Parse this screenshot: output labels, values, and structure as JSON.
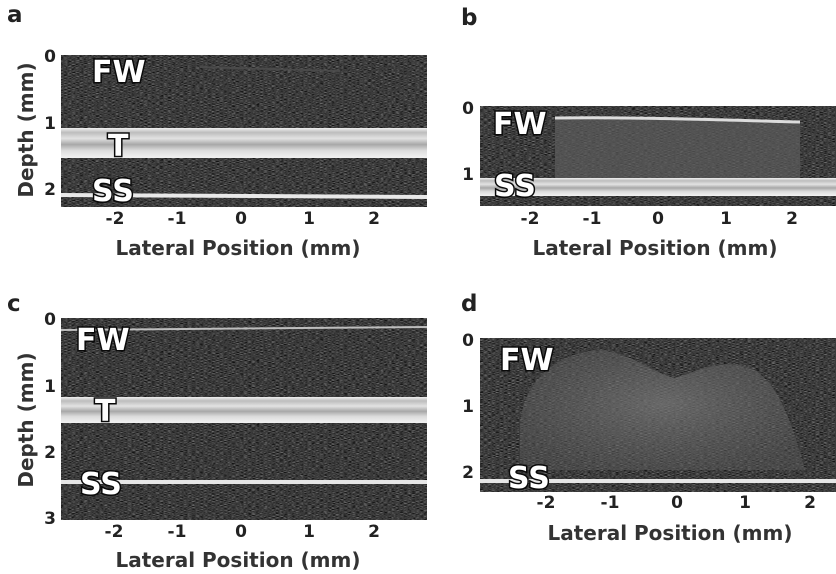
{
  "panels": [
    {
      "id": "a",
      "label": "a",
      "y_label": "Depth (mm)",
      "x_label": "Lateral Position (mm)",
      "y_ticks": [
        "0",
        "1",
        "2"
      ],
      "x_ticks": [
        "-2",
        "-1",
        "0",
        "1",
        "2"
      ],
      "tags": [
        "FW",
        "T",
        "SS"
      ]
    },
    {
      "id": "b",
      "label": "b",
      "y_label": "",
      "x_label": "Lateral Position (mm)",
      "y_ticks": [
        "0",
        "1"
      ],
      "x_ticks": [
        "-2",
        "-1",
        "0",
        "1",
        "2"
      ],
      "tags": [
        "FW",
        "SS"
      ]
    },
    {
      "id": "c",
      "label": "c",
      "y_label": "Depth (mm)",
      "x_label": "Lateral Position (mm)",
      "y_ticks": [
        "0",
        "1",
        "2",
        "3"
      ],
      "x_ticks": [
        "-2",
        "-1",
        "0",
        "1",
        "2"
      ],
      "tags": [
        "FW",
        "T",
        "SS"
      ]
    },
    {
      "id": "d",
      "label": "d",
      "y_label": "",
      "x_label": "Lateral Position (mm)",
      "y_ticks": [
        "0",
        "1",
        "2"
      ],
      "x_ticks": [
        "-2",
        "-1",
        "0",
        "1",
        "2"
      ],
      "tags": [
        "FW",
        "SS"
      ]
    }
  ],
  "colors": {
    "background": "#ffffff",
    "image_dark": "#121212",
    "band_bright": "#d6d6d6",
    "tag_text": "#ffffff",
    "tag_outline": "#0a0a0a"
  }
}
